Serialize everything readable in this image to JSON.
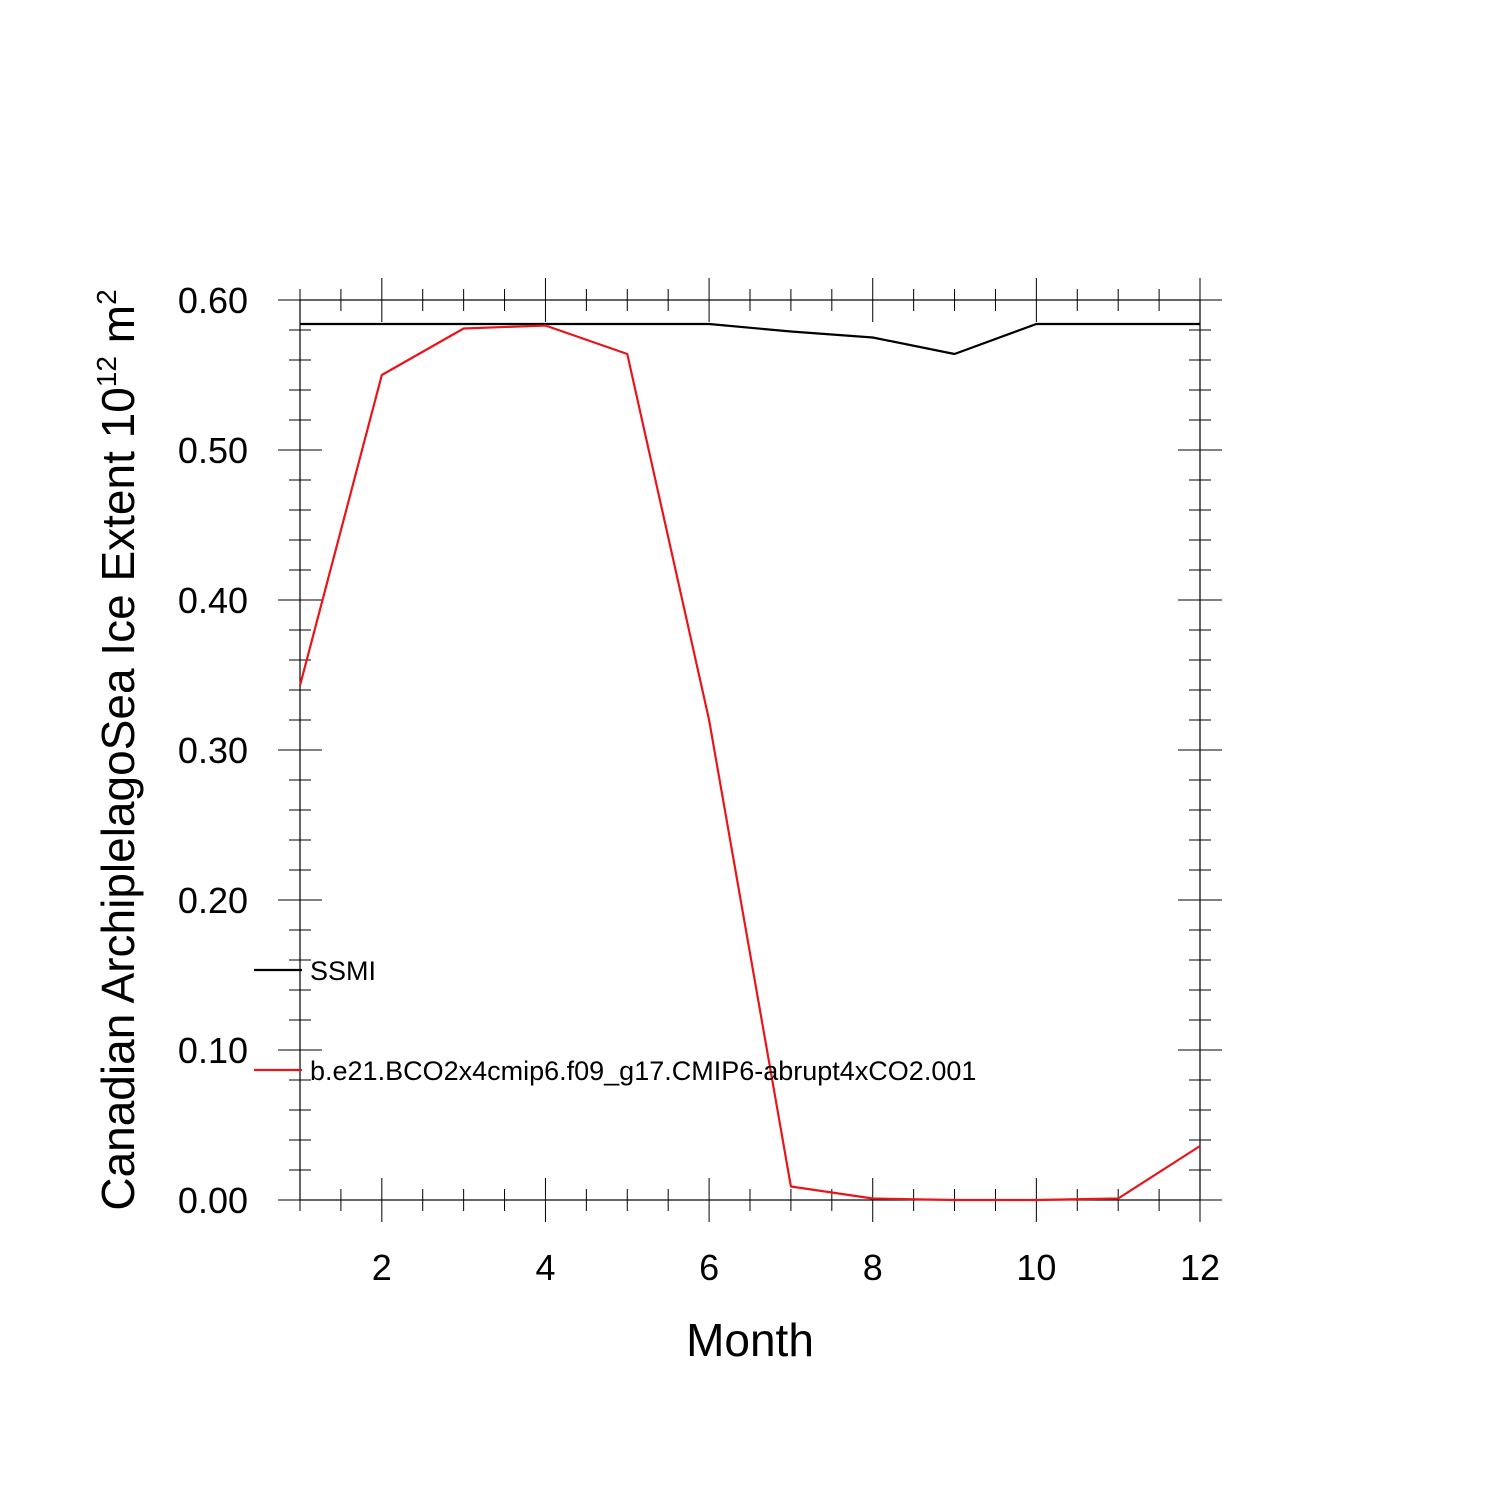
{
  "chart_data": {
    "type": "line",
    "xlabel": "Month",
    "ylabel": {
      "prefix": "Canadian ArchiplelagoSea Ice Extent 10",
      "superscript": "12",
      "middle": " m",
      "superscript2": "2"
    },
    "xlim": [
      1,
      12
    ],
    "ylim": [
      0.0,
      0.6
    ],
    "x_ticks": [
      2,
      4,
      6,
      8,
      10,
      12
    ],
    "x_tick_labels": [
      "2",
      "4",
      "6",
      "8",
      "10",
      "12"
    ],
    "y_ticks": [
      0.0,
      0.1,
      0.2,
      0.3,
      0.4,
      0.5,
      0.6
    ],
    "y_tick_labels": [
      "0.00",
      "0.10",
      "0.20",
      "0.30",
      "0.40",
      "0.50",
      "0.60"
    ],
    "grid": false,
    "legend_position": "lower-left",
    "x": [
      1,
      2,
      3,
      4,
      5,
      6,
      7,
      8,
      9,
      10,
      11,
      12
    ],
    "series": [
      {
        "name": "SSMI",
        "color": "#000000",
        "values": [
          0.584,
          0.584,
          0.584,
          0.584,
          0.584,
          0.584,
          0.579,
          0.575,
          0.564,
          0.584,
          0.584,
          0.584
        ]
      },
      {
        "name": "b.e21.BCO2x4cmip6.f09_g17.CMIP6-abrupt4xCO2.001",
        "color": "#e8151a",
        "values": [
          0.343,
          0.55,
          0.581,
          0.583,
          0.564,
          0.32,
          0.009,
          0.001,
          0.0,
          0.0,
          0.001,
          0.036
        ]
      }
    ]
  }
}
